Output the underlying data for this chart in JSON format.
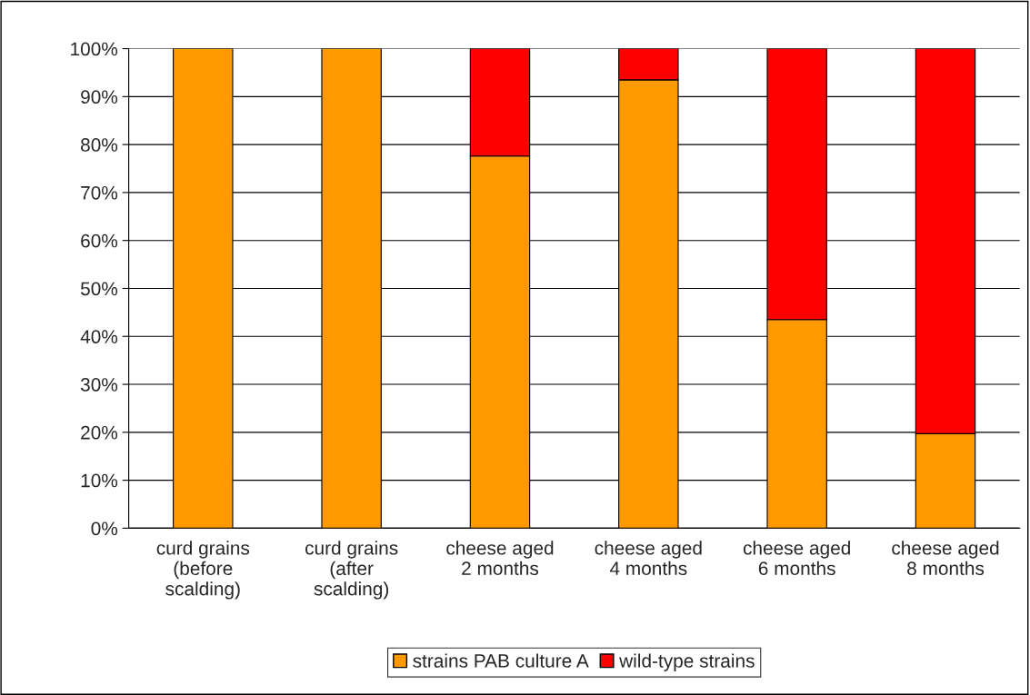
{
  "chart_data": {
    "type": "bar",
    "stacked": true,
    "categories": [
      "curd grains\n(before\nscalding)",
      "curd grains\n(after\nscalding)",
      "cheese aged\n2 months",
      "cheese aged\n4 months",
      "cheese aged\n6 months",
      "cheese aged\n8 months"
    ],
    "series": [
      {
        "name": "strains PAB culture A",
        "color": "#ff9900",
        "values": [
          100,
          100,
          77.6,
          93.5,
          43.5,
          19.7
        ]
      },
      {
        "name": "wild-type strains",
        "color": "#ff0000",
        "values": [
          null,
          null,
          22.4,
          6.5,
          56.5,
          80.3
        ]
      }
    ],
    "ylim": [
      0,
      100
    ],
    "yticks": [
      {
        "value": 0,
        "label": "0%"
      },
      {
        "value": 10,
        "label": "10%"
      },
      {
        "value": 20,
        "label": "20%"
      },
      {
        "value": 30,
        "label": "30%"
      },
      {
        "value": 40,
        "label": "40%"
      },
      {
        "value": 50,
        "label": "50%"
      },
      {
        "value": 60,
        "label": "60%"
      },
      {
        "value": 70,
        "label": "70%"
      },
      {
        "value": 80,
        "label": "80%"
      },
      {
        "value": 90,
        "label": "90%"
      },
      {
        "value": 100,
        "label": "100%"
      }
    ],
    "grid": "y",
    "legend": "bottom"
  }
}
